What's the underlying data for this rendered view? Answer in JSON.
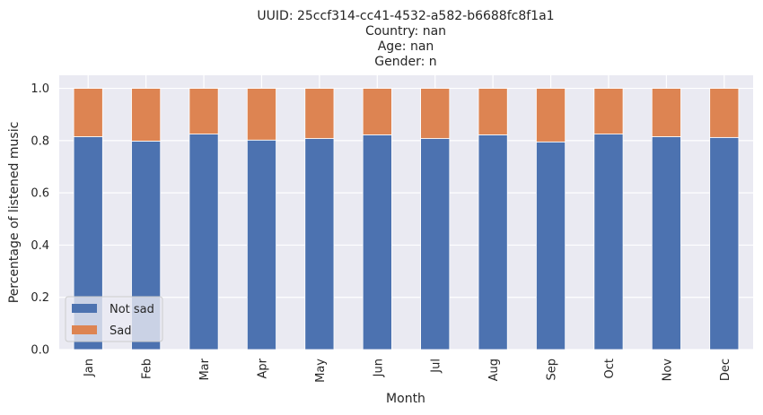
{
  "chart_data": {
    "type": "bar",
    "stacked": true,
    "title_lines": [
      "UUID: 25ccf314-cc41-4532-a582-b6688fc8f1a1",
      "Country: nan",
      "Age: nan",
      "Gender: n"
    ],
    "xlabel": "Month",
    "ylabel": "Percentage of listened music",
    "categories": [
      "Jan",
      "Feb",
      "Mar",
      "Apr",
      "May",
      "Jun",
      "Jul",
      "Aug",
      "Sep",
      "Oct",
      "Nov",
      "Dec"
    ],
    "series": [
      {
        "name": "Not sad",
        "color": "#4c72b0",
        "values": [
          0.815,
          0.798,
          0.825,
          0.802,
          0.808,
          0.822,
          0.808,
          0.822,
          0.795,
          0.825,
          0.815,
          0.812
        ]
      },
      {
        "name": "Sad",
        "color": "#dd8452",
        "values": [
          0.185,
          0.202,
          0.175,
          0.198,
          0.192,
          0.178,
          0.192,
          0.178,
          0.205,
          0.175,
          0.185,
          0.188
        ]
      }
    ],
    "ylim": [
      0,
      1.05
    ],
    "yticks": [
      "0.0",
      "0.2",
      "0.4",
      "0.6",
      "0.8",
      "1.0"
    ],
    "grid": true,
    "legend_position": "lower-left",
    "background": "#eaeaf2"
  }
}
